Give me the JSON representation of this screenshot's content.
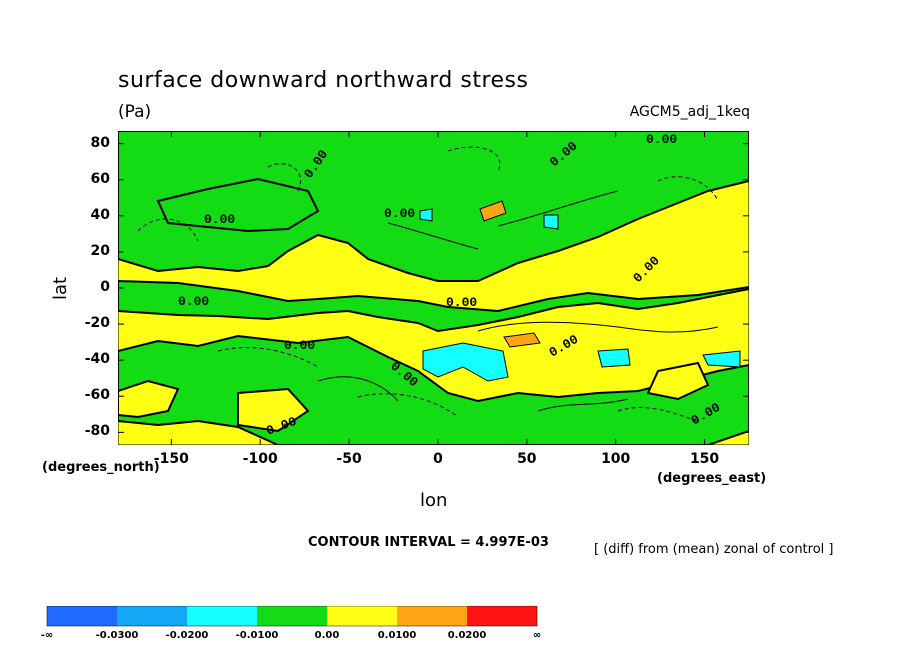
{
  "chart_data": {
    "type": "heatmap",
    "title": "surface downward northward stress",
    "units": "(Pa)",
    "run_label": "AGCM5_adj_1keq",
    "xlabel": "lon",
    "ylabel": "lat",
    "x_axis_unit": "(degrees_east)",
    "y_axis_unit": "(degrees_north)",
    "xlim": [
      -180,
      175
    ],
    "ylim": [
      -87,
      87
    ],
    "x_ticks": [
      "-150",
      "-100",
      "-50",
      "0",
      "50",
      "100",
      "150"
    ],
    "y_ticks": [
      "80",
      "60",
      "40",
      "20",
      "0",
      "-20",
      "-40",
      "-60",
      "-80"
    ],
    "contour_interval_label": "CONTOUR INTERVAL = 4.997E-03",
    "note": "[ (diff) from (mean) zonal of control ]",
    "contour_labels": [
      "0.00"
    ],
    "grid": false,
    "legend": {
      "position": "bottom",
      "colors": [
        "#1f6bff",
        "#14a7f5",
        "#14ffff",
        "#14dc14",
        "#ffff14",
        "#ffa514",
        "#ff1414"
      ],
      "labels": [
        "-∞",
        "-0.0300",
        "-0.0200",
        "-0.0100",
        "0.00",
        "0.0100",
        "0.0200",
        "∞"
      ]
    }
  }
}
